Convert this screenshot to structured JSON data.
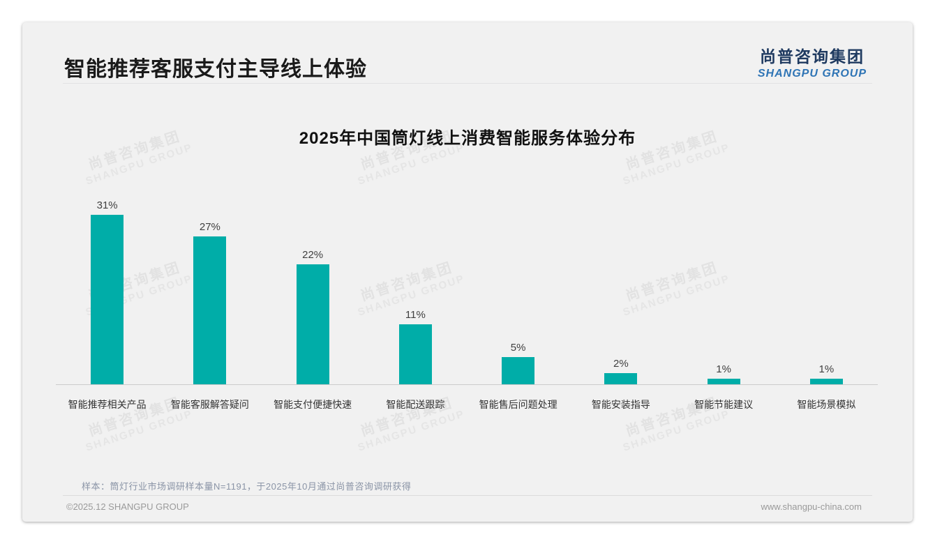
{
  "header": {
    "title": "智能推荐客服支付主导线上体验",
    "logo_cn": "尚普咨询集团",
    "logo_en": "SHANGPU GROUP"
  },
  "chart_data": {
    "type": "bar",
    "title": "2025年中国筒灯线上消费智能服务体验分布",
    "categories": [
      "智能推荐相关产品",
      "智能客服解答疑问",
      "智能支付便捷快速",
      "智能配送跟踪",
      "智能售后问题处理",
      "智能安装指导",
      "智能节能建议",
      "智能场景模拟"
    ],
    "values": [
      31,
      27,
      22,
      11,
      5,
      2,
      1,
      1
    ],
    "unit": "%",
    "bar_color": "#00ada8",
    "ylim": [
      0,
      33
    ],
    "grid": false,
    "legend": false,
    "data_labels": true
  },
  "watermark": {
    "line1": "尚普咨询集团",
    "line2": "SHANGPU GROUP"
  },
  "footer": {
    "note": "样本：筒灯行业市场调研样本量N=1191，于2025年10月通过尚普咨询调研获得",
    "copyright": "©2025.12 SHANGPU GROUP",
    "website": "www.shangpu-china.com"
  },
  "brand_colors": {
    "accent_teal": "#00ada8",
    "logo_navy": "#1f3a60",
    "logo_blue": "#2e74b5"
  }
}
